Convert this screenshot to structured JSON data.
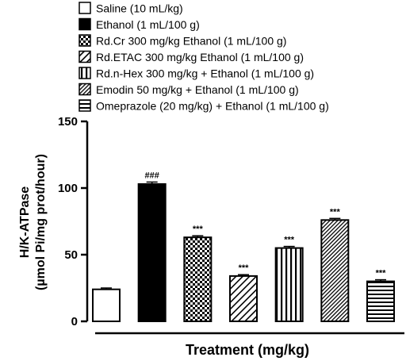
{
  "chart_data": {
    "type": "bar",
    "title": "",
    "xlabel": "Treatment (mg/kg)",
    "ylabel_line1": "H/K-ATPase",
    "ylabel_line2": "(µmol Pi/mg prot/hour)",
    "ylim": [
      0,
      150
    ],
    "yticks": [
      "0",
      "50",
      "100",
      "150"
    ],
    "ytick_values": [
      0,
      50,
      100,
      150
    ],
    "legend_position": "top",
    "bars": [
      {
        "name": "Saline (10 mL/kg)",
        "value": 24,
        "error": 1.0,
        "pattern": "white",
        "annotation": ""
      },
      {
        "name": "Ethanol (1 mL/100 g)",
        "value": 103,
        "error": 1.5,
        "pattern": "solid",
        "annotation": "###"
      },
      {
        "name": "Rd.Cr 300 mg/kg Ethanol (1 mL/100 g)",
        "value": 63,
        "error": 1.2,
        "pattern": "checker",
        "annotation": "***"
      },
      {
        "name": "Rd.ETAC 300 mg/kg Ethanol (1 mL/100 g)",
        "value": 34,
        "error": 1.0,
        "pattern": "diagonal",
        "annotation": "***"
      },
      {
        "name": "Rd.n-Hex 300 mg/kg + Ethanol (1 mL/100 g)",
        "value": 55,
        "error": 1.2,
        "pattern": "vertical",
        "annotation": "***"
      },
      {
        "name": "Emodin 50 mg/kg + Ethanol (1 mL/100 g)",
        "value": 76,
        "error": 1.2,
        "pattern": "dense-diagonal",
        "annotation": "***"
      },
      {
        "name": "Omeprazole (20 mg/kg) + Ethanol (1 mL/100 g)",
        "value": 30,
        "error": 1.2,
        "pattern": "horizontal",
        "annotation": "***"
      }
    ]
  }
}
